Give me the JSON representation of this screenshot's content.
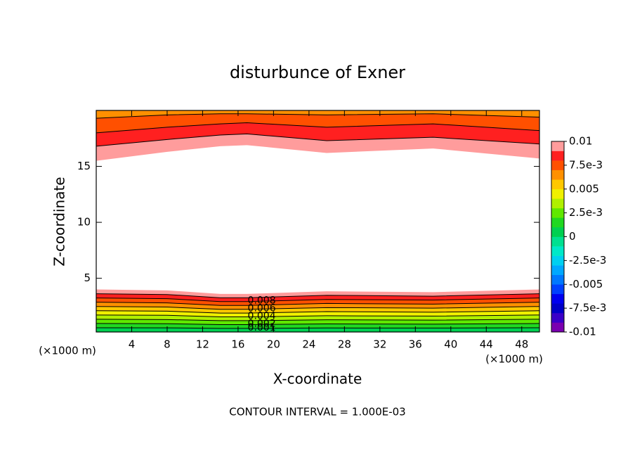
{
  "chart_data": {
    "type": "contour",
    "title": "disturbunce of Exner",
    "xlabel": "X-coordinate",
    "ylabel": "Z-coordinate",
    "xunit": "(×1000 m)",
    "yunit": "(×1000 m)",
    "footer": "CONTOUR INTERVAL = 1.000E-03",
    "xlim": [
      0,
      50
    ],
    "ylim": [
      0.2,
      20
    ],
    "xticks": [
      4,
      8,
      12,
      16,
      20,
      24,
      28,
      32,
      36,
      40,
      44,
      48
    ],
    "yticks": [
      5,
      10,
      15
    ],
    "contour_x": [
      0,
      8,
      14,
      17,
      26,
      38,
      50
    ],
    "bottom_contours": [
      {
        "level": 0.001,
        "labeled": true,
        "y": [
          0.58,
          0.57,
          0.52,
          0.52,
          0.56,
          0.55,
          0.58
        ]
      },
      {
        "level": 0.002,
        "labeled": true,
        "y": [
          0.96,
          0.94,
          0.86,
          0.86,
          0.92,
          0.9,
          0.96
        ]
      },
      {
        "level": 0.003,
        "labeled": false,
        "y": [
          1.34,
          1.31,
          1.21,
          1.21,
          1.29,
          1.26,
          1.34
        ]
      },
      {
        "level": 0.004,
        "labeled": true,
        "y": [
          1.72,
          1.69,
          1.55,
          1.55,
          1.65,
          1.62,
          1.72
        ]
      },
      {
        "level": 0.005,
        "labeled": false,
        "y": [
          2.1,
          2.06,
          1.89,
          1.89,
          2.02,
          1.97,
          2.1
        ]
      },
      {
        "level": 0.006,
        "labeled": true,
        "y": [
          2.48,
          2.43,
          2.23,
          2.23,
          2.38,
          2.33,
          2.48
        ]
      },
      {
        "level": 0.007,
        "labeled": false,
        "y": [
          2.86,
          2.8,
          2.57,
          2.57,
          2.75,
          2.69,
          2.86
        ]
      },
      {
        "level": 0.008,
        "labeled": true,
        "y": [
          3.24,
          3.18,
          2.92,
          2.92,
          3.11,
          3.05,
          3.24
        ]
      },
      {
        "level": 0.009,
        "labeled": false,
        "y": [
          3.62,
          3.55,
          3.26,
          3.26,
          3.48,
          3.4,
          3.62
        ]
      },
      {
        "level": 0.01,
        "labeled": false,
        "y": [
          4.0,
          3.92,
          3.6,
          3.6,
          3.84,
          3.76,
          4.0
        ]
      }
    ],
    "top_contours": [
      {
        "level": 0.01,
        "labeled": false,
        "y": [
          15.5,
          16.3,
          16.8,
          16.9,
          16.2,
          16.6,
          15.7
        ]
      },
      {
        "level": 0.009,
        "labeled": false,
        "y": [
          16.8,
          17.4,
          17.8,
          17.9,
          17.3,
          17.6,
          17.0
        ]
      },
      {
        "level": 0.008,
        "labeled": false,
        "y": [
          18.0,
          18.5,
          18.8,
          18.9,
          18.5,
          18.8,
          18.2
        ]
      },
      {
        "level": 0.007,
        "labeled": false,
        "y": [
          19.3,
          19.6,
          19.7,
          19.7,
          19.6,
          19.7,
          19.4
        ]
      }
    ],
    "colorbar": {
      "lim": [
        -0.01,
        0.01
      ],
      "ticks": [
        0.01,
        {
          "value": 0.0075,
          "label": "7.5e-3"
        },
        0.005,
        {
          "value": 0.0025,
          "label": "2.5e-3"
        },
        0,
        {
          "value": -0.0025,
          "label": "-2.5e-3"
        },
        -0.005,
        {
          "value": -0.0075,
          "label": "-7.5e-3"
        },
        -0.01
      ],
      "colors": [
        "#7a00b0",
        "#3a00c8",
        "#0000c8",
        "#0000f0",
        "#0040ff",
        "#0078ff",
        "#00a8ff",
        "#00d0f0",
        "#00e8c8",
        "#00e090",
        "#00d050",
        "#20d820",
        "#60e800",
        "#b0f000",
        "#f0f000",
        "#ffc800",
        "#ff9000",
        "#ff5000",
        "#ff2020",
        "#ff9c9c"
      ]
    }
  }
}
